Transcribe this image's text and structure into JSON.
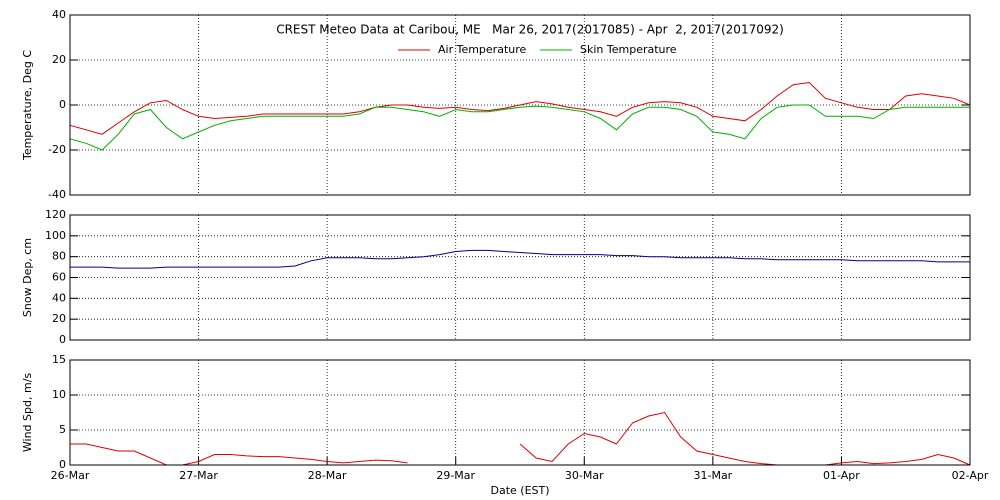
{
  "chart_data": [
    {
      "type": "line",
      "title": "CREST Meteo Data at Caribou, ME   Mar 26, 2017(2017085) - Apr  2, 2017(2017092)",
      "ylabel": "Temperature, Deg C",
      "ylim": [
        -40,
        40
      ],
      "yticks": [
        -40,
        -20,
        0,
        20,
        40
      ],
      "xlim": [
        0,
        7
      ],
      "grid": true,
      "x": [
        0,
        0.125,
        0.25,
        0.375,
        0.5,
        0.625,
        0.75,
        0.875,
        1,
        1.125,
        1.25,
        1.375,
        1.5,
        1.625,
        1.75,
        1.875,
        2,
        2.125,
        2.25,
        2.375,
        2.5,
        2.625,
        2.75,
        2.875,
        3,
        3.125,
        3.25,
        3.375,
        3.5,
        3.625,
        3.75,
        3.875,
        4,
        4.125,
        4.25,
        4.375,
        4.5,
        4.625,
        4.75,
        4.875,
        5,
        5.125,
        5.25,
        5.375,
        5.5,
        5.625,
        5.75,
        5.875,
        6,
        6.125,
        6.25,
        6.375,
        6.5,
        6.625,
        6.75,
        6.875,
        7
      ],
      "series": [
        {
          "name": "Air Temperature",
          "color": "#e00000",
          "values": [
            -9,
            -11,
            -13,
            -8,
            -3,
            1,
            2,
            -2,
            -5,
            -6,
            -5.5,
            -5,
            -4,
            -4,
            -4,
            -4,
            -4,
            -4,
            -3,
            -1,
            0,
            0,
            -1,
            -1.5,
            -1,
            -2,
            -2.5,
            -1.5,
            0,
            1.5,
            0.5,
            -1,
            -2,
            -3,
            -5,
            -1,
            1,
            1.5,
            1,
            -1,
            -5,
            -6,
            -7,
            -2,
            4,
            9,
            10,
            3,
            1,
            -1,
            -2,
            -2,
            4,
            5,
            4,
            3,
            0
          ]
        },
        {
          "name": "Skin Temperature",
          "color": "#00b000",
          "values": [
            -15,
            -17,
            -20,
            -13,
            -4,
            -2,
            -10,
            -15,
            -12,
            -9,
            -7,
            -6,
            -5,
            -5,
            -5,
            -5,
            -5,
            -5,
            -4,
            -1,
            -1,
            -2,
            -3,
            -5,
            -2,
            -3,
            -3,
            -2,
            -1,
            -0.5,
            -1,
            -2,
            -3,
            -6,
            -11,
            -4,
            -1,
            -1,
            -2,
            -5,
            -12,
            -13,
            -15,
            -6,
            -1,
            0,
            0,
            -5,
            -5,
            -5,
            -6,
            -2,
            -1,
            -1,
            -1,
            -1,
            -1
          ]
        }
      ]
    },
    {
      "type": "line",
      "ylabel": "Snow Dep, cm",
      "ylim": [
        0,
        120
      ],
      "yticks": [
        0,
        20,
        40,
        60,
        80,
        100,
        120
      ],
      "xlim": [
        0,
        7
      ],
      "grid": true,
      "x": [
        0,
        0.125,
        0.25,
        0.375,
        0.5,
        0.625,
        0.75,
        0.875,
        1,
        1.125,
        1.25,
        1.375,
        1.5,
        1.625,
        1.75,
        1.875,
        2,
        2.125,
        2.25,
        2.375,
        2.5,
        2.625,
        2.75,
        2.875,
        3,
        3.125,
        3.25,
        3.375,
        3.5,
        3.625,
        3.75,
        3.875,
        4,
        4.125,
        4.25,
        4.375,
        4.5,
        4.625,
        4.75,
        4.875,
        5,
        5.125,
        5.25,
        5.375,
        5.5,
        5.625,
        5.75,
        5.875,
        6,
        6.125,
        6.25,
        6.375,
        6.5,
        6.625,
        6.75,
        6.875,
        7
      ],
      "series": [
        {
          "color": "#000090",
          "values": [
            70,
            70,
            70,
            69,
            69,
            69,
            70,
            70,
            70,
            70,
            70,
            70,
            70,
            70,
            71,
            76,
            79,
            79,
            79,
            78,
            78,
            79,
            80,
            82,
            85,
            86,
            86,
            85,
            84,
            83,
            82,
            82,
            82,
            82,
            81,
            81,
            80,
            80,
            79,
            79,
            79,
            79,
            78,
            78,
            77,
            77,
            77,
            77,
            77,
            76,
            76,
            76,
            76,
            76,
            75,
            75,
            75
          ]
        }
      ]
    },
    {
      "type": "line",
      "ylabel": "Wind Spd, m/s",
      "xlabel": "Date (EST)",
      "ylim": [
        0,
        15
      ],
      "yticks": [
        0,
        5,
        10,
        15
      ],
      "xlim": [
        0,
        7
      ],
      "grid": true,
      "xticks": [
        {
          "value": 0,
          "label": "26-Mar"
        },
        {
          "value": 1,
          "label": "27-Mar"
        },
        {
          "value": 2,
          "label": "28-Mar"
        },
        {
          "value": 3,
          "label": "29-Mar"
        },
        {
          "value": 4,
          "label": "30-Mar"
        },
        {
          "value": 5,
          "label": "31-Mar"
        },
        {
          "value": 6,
          "label": "01-Apr"
        },
        {
          "value": 7,
          "label": "02-Apr"
        }
      ],
      "x": [
        0,
        0.125,
        0.25,
        0.375,
        0.5,
        0.625,
        0.75,
        0.875,
        1,
        1.125,
        1.25,
        1.375,
        1.5,
        1.625,
        1.75,
        1.875,
        2,
        2.125,
        2.25,
        2.375,
        2.5,
        2.625,
        2.75,
        2.875,
        3,
        3.125,
        3.25,
        3.375,
        3.5,
        3.625,
        3.75,
        3.875,
        4,
        4.125,
        4.25,
        4.375,
        4.5,
        4.625,
        4.75,
        4.875,
        5,
        5.125,
        5.25,
        5.375,
        5.5,
        5.625,
        5.75,
        5.875,
        6,
        6.125,
        6.25,
        6.375,
        6.5,
        6.625,
        6.75,
        6.875,
        7
      ],
      "series": [
        {
          "color": "#e00000",
          "values": [
            3,
            3,
            2.5,
            2,
            2,
            1,
            0,
            0,
            0.5,
            1.5,
            1.5,
            1.3,
            1.2,
            1.2,
            1,
            0.8,
            0.5,
            0.3,
            0.5,
            0.7,
            0.6,
            0.3,
            null,
            null,
            null,
            null,
            null,
            null,
            3,
            1,
            0.5,
            3,
            4.5,
            4,
            3,
            6,
            7,
            7.5,
            4,
            2,
            1.5,
            1,
            0.5,
            0.2,
            0,
            0,
            0,
            0,
            0.3,
            0.5,
            0.2,
            0.3,
            0.5,
            0.8,
            1.5,
            1,
            0
          ]
        }
      ]
    }
  ]
}
